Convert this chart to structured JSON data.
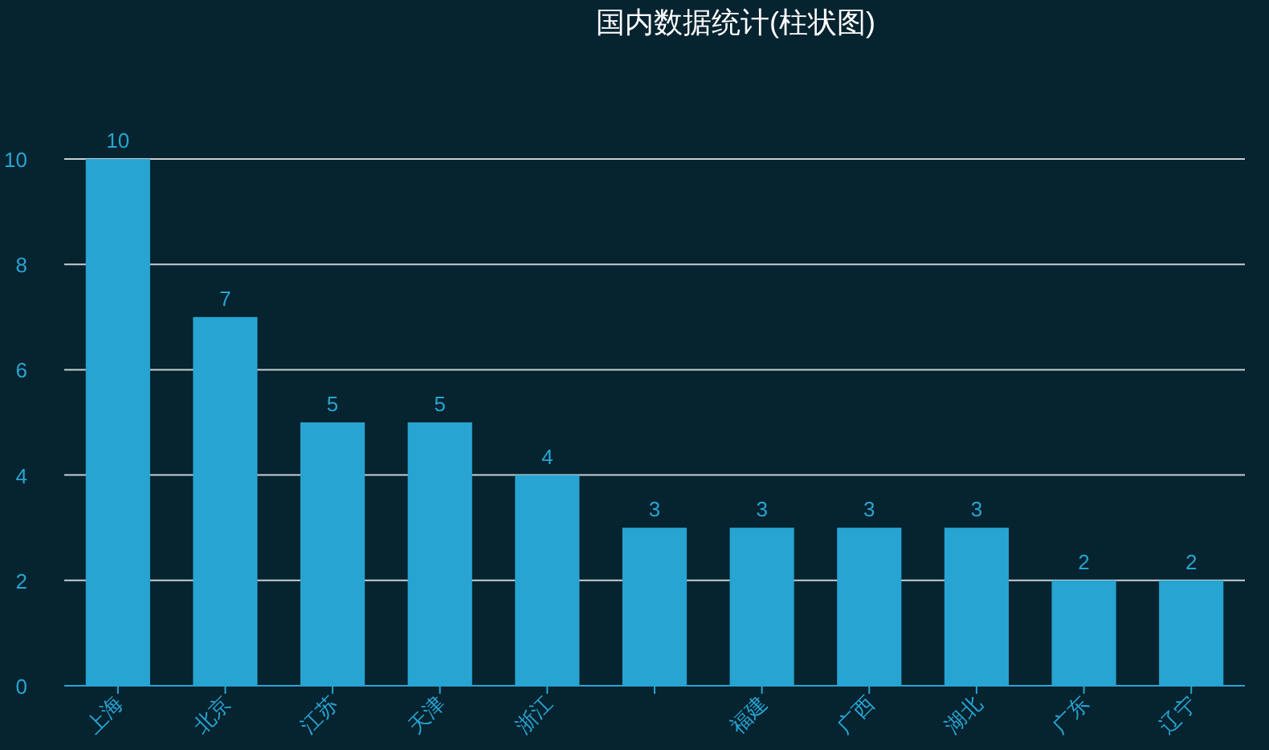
{
  "chart_data": {
    "type": "bar",
    "title": "国内数据统计(柱状图)",
    "categories": [
      "上海",
      "北京",
      "江苏",
      "天津",
      "浙江",
      null,
      "福建",
      "广西",
      "湖北",
      "广东",
      "辽宁"
    ],
    "values": [
      10,
      7,
      5,
      5,
      4,
      3,
      3,
      3,
      3,
      2,
      2
    ],
    "color": "#27a4d1",
    "ylim": [
      0,
      10
    ],
    "yticks": [
      0,
      2,
      4,
      6,
      8,
      10
    ],
    "grid": "y",
    "data_labels": true
  }
}
